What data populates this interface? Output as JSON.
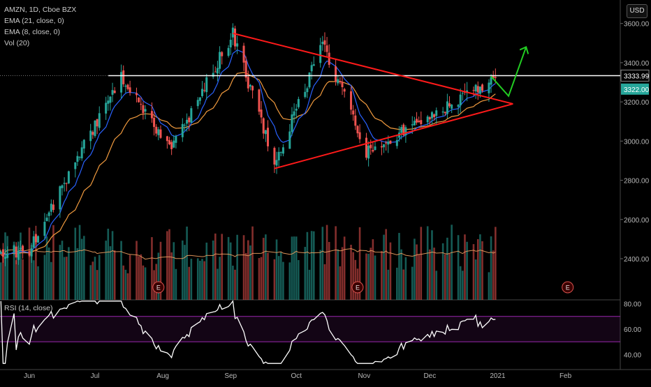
{
  "legend": {
    "symbol": "AMZN, 1D, Cboe BZX",
    "ema21": "EMA (21, close, 0)",
    "ema8": "EMA (8, close, 0)",
    "vol": "Vol (20)"
  },
  "rsi_label": "RSI (14, close)",
  "currency": "USD",
  "price_labels": {
    "resistance": "3333.99",
    "last": "3322.00"
  },
  "earnings_marker": "E",
  "colors": {
    "background": "#000000",
    "up": "#26a69a",
    "down": "#ef5350",
    "ema8": "#2962ff",
    "ema21": "#f09a3e",
    "volume_ma": "#f0a060",
    "triangle": "#ff1a1a",
    "resistance": "#ffffff",
    "arrow": "#22cc22",
    "rsi_line": "#ffffff",
    "rsi_band": "#9c27b0"
  },
  "chart_data": [
    {
      "type": "candlestick",
      "title": "AMZN, 1D, Cboe BZX",
      "xlabel": "",
      "ylabel": "",
      "x_tick_labels": [
        "Jun",
        "Jul",
        "Aug",
        "Sep",
        "Oct",
        "Nov",
        "Dec",
        "2021",
        "Feb"
      ],
      "y_tick_labels": [
        "2400.00",
        "2600.00",
        "2800.00",
        "3000.00",
        "3200.00",
        "3400.00",
        "3600.00"
      ],
      "ylim": [
        2190,
        3670
      ],
      "series": [
        {
          "name": "EMA (21, close, 0)"
        },
        {
          "name": "EMA (8, close, 0)"
        },
        {
          "name": "Vol (20)"
        }
      ],
      "key_points": [
        {
          "x": "2020-06-01",
          "y": 2450
        },
        {
          "x": "2020-07-13",
          "y": 3340
        },
        {
          "x": "2020-08-05",
          "y": 2950
        },
        {
          "x": "2020-09-02",
          "y": 3550
        },
        {
          "x": "2020-09-21",
          "y": 2880
        },
        {
          "x": "2020-10-13",
          "y": 3500
        },
        {
          "x": "2020-11-02",
          "y": 2950
        },
        {
          "x": "2020-12-31",
          "y": 3322
        }
      ],
      "annotations": {
        "resistance_level": 3334,
        "triangle_upper": [
          {
            "x": "2020-09-02",
            "y": 3550
          },
          {
            "x": "2021-01-08",
            "y": 3190
          }
        ],
        "triangle_lower": [
          {
            "x": "2020-09-21",
            "y": 2860
          },
          {
            "x": "2021-01-08",
            "y": 3190
          }
        ],
        "projection_arrow": [
          {
            "x": "2020-12-29",
            "y": 3330
          },
          {
            "x": "2021-01-06",
            "y": 3230
          },
          {
            "x": "2021-01-14",
            "y": 3480
          }
        ],
        "earnings_dates": [
          "2020-07-30",
          "2020-10-29",
          "2021-02-02"
        ]
      },
      "grid": false,
      "legend": "top-left"
    },
    {
      "type": "line",
      "title": "RSI (14, close)",
      "y_tick_labels": [
        "40.00",
        "60.00",
        "80.00"
      ],
      "ylim": [
        32,
        83
      ],
      "bands": [
        50,
        70
      ],
      "end_value": 65
    }
  ]
}
